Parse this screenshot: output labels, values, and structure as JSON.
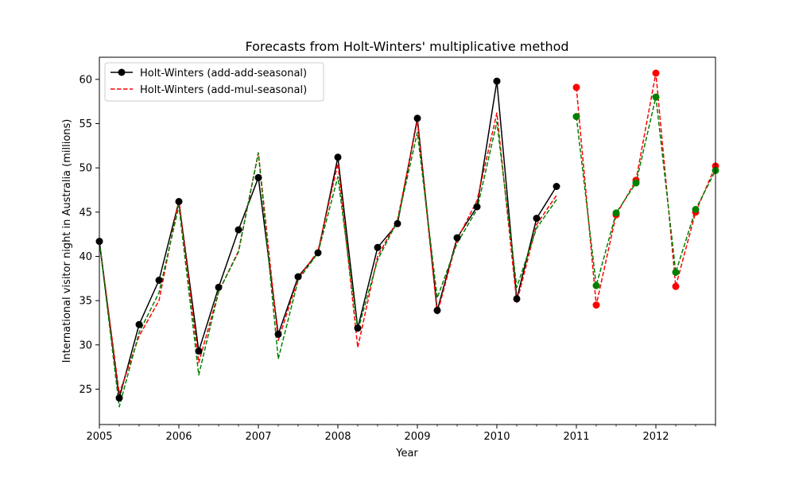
{
  "chart_data": {
    "type": "line",
    "title": "Forecasts from Holt-Winters' multiplicative method",
    "xlabel": "Year",
    "ylabel": "International visitor night in Australia (millions)",
    "xlim": [
      2005.0,
      2012.75
    ],
    "ylim": [
      21,
      62.5
    ],
    "x_ticks": [
      2005,
      2006,
      2007,
      2008,
      2009,
      2010,
      2011,
      2012
    ],
    "x_minor_step": 0.25,
    "y_ticks": [
      25,
      30,
      35,
      40,
      45,
      50,
      55,
      60
    ],
    "grid": false,
    "legend": {
      "placement": "top-left",
      "entries": [
        {
          "label": "Holt-Winters (add-add-seasonal)",
          "color": "#000000",
          "style": "solid",
          "marker": "circle"
        },
        {
          "label": "Holt-Winters (add-mul-seasonal)",
          "color": "#ff0000",
          "style": "dashed",
          "marker": "none"
        }
      ]
    },
    "series": [
      {
        "key": "observed",
        "color": "#000000",
        "style": "solid",
        "marker": true,
        "x": [
          2005.0,
          2005.25,
          2005.5,
          2005.75,
          2006.0,
          2006.25,
          2006.5,
          2006.75,
          2007.0,
          2007.25,
          2007.5,
          2007.75,
          2008.0,
          2008.25,
          2008.5,
          2008.75,
          2009.0,
          2009.25,
          2009.5,
          2009.75,
          2010.0,
          2010.25,
          2010.5,
          2010.75
        ],
        "y": [
          41.7,
          24.0,
          32.3,
          37.3,
          46.2,
          29.3,
          36.5,
          43.0,
          48.9,
          31.2,
          37.7,
          40.4,
          51.2,
          31.9,
          41.0,
          43.7,
          55.6,
          33.9,
          42.1,
          45.6,
          59.8,
          35.2,
          44.3,
          47.9
        ]
      },
      {
        "key": "fitted-add-mul",
        "color": "#ff0000",
        "style": "dashed",
        "marker": false,
        "x": [
          2005.0,
          2005.25,
          2005.5,
          2005.75,
          2006.0,
          2006.25,
          2006.5,
          2006.75,
          2007.0,
          2007.25,
          2007.5,
          2007.75,
          2008.0,
          2008.25,
          2008.5,
          2008.75,
          2009.0,
          2009.25,
          2009.5,
          2009.75,
          2010.0,
          2010.25,
          2010.5,
          2010.75
        ],
        "y": [
          41.7,
          24.5,
          31.0,
          35.0,
          46.4,
          28.0,
          36.0,
          40.6,
          51.7,
          30.5,
          37.5,
          40.6,
          50.5,
          29.7,
          40.0,
          44.1,
          55.3,
          33.5,
          41.9,
          46.3,
          56.2,
          34.8,
          43.6,
          46.9
        ]
      },
      {
        "key": "fitted-add-add",
        "color": "#008000",
        "style": "dashed",
        "marker": false,
        "x": [
          2005.0,
          2005.25,
          2005.5,
          2005.75,
          2006.0,
          2006.25,
          2006.5,
          2006.75,
          2007.0,
          2007.25,
          2007.5,
          2007.75,
          2008.0,
          2008.25,
          2008.5,
          2008.75,
          2009.0,
          2009.25,
          2009.5,
          2009.75,
          2010.0,
          2010.25,
          2010.5,
          2010.75
        ],
        "y": [
          41.7,
          23.0,
          31.4,
          35.9,
          45.7,
          26.6,
          36.0,
          40.5,
          51.7,
          28.4,
          37.3,
          40.4,
          49.0,
          31.6,
          39.6,
          44.0,
          54.0,
          35.3,
          41.5,
          45.3,
          55.2,
          36.5,
          43.2,
          46.4
        ]
      },
      {
        "key": "forecast-add-mul",
        "color": "#ff0000",
        "style": "dashed",
        "marker": true,
        "x": [
          2011.0,
          2011.25,
          2011.5,
          2011.75,
          2012.0,
          2012.25,
          2012.5,
          2012.75
        ],
        "y": [
          59.1,
          34.5,
          44.7,
          48.6,
          60.7,
          36.6,
          45.0,
          50.2
        ]
      },
      {
        "key": "forecast-add-add",
        "color": "#008000",
        "style": "dashed",
        "marker": true,
        "x": [
          2011.0,
          2011.25,
          2011.5,
          2011.75,
          2012.0,
          2012.25,
          2012.5,
          2012.75
        ],
        "y": [
          55.8,
          36.7,
          44.9,
          48.3,
          58.0,
          38.2,
          45.3,
          49.7
        ]
      }
    ]
  }
}
